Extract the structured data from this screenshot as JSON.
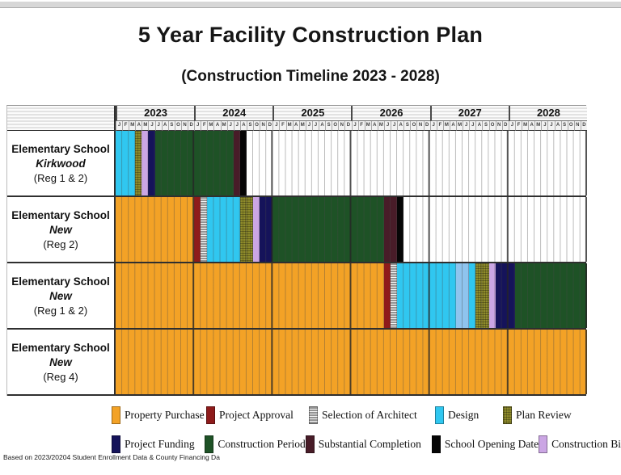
{
  "page": {
    "title": "5 Year Facility Construction Plan",
    "subtitle": "(Construction Timeline 2023 - 2028)",
    "footnote": "Based on 2023/20204 Student Enrollment Data & County Financing Da"
  },
  "chart_data": {
    "type": "bar",
    "subtype": "gantt-timeline",
    "title": "5 Year Facility Construction Plan",
    "subtitle": "(Construction Timeline 2023 - 2028)",
    "x_axis": {
      "years": [
        "2023",
        "2024",
        "2025",
        "2026",
        "2027",
        "2028"
      ],
      "month_letters": [
        "J",
        "F",
        "M",
        "A",
        "M",
        "J",
        "J",
        "A",
        "S",
        "O",
        "N",
        "D"
      ],
      "total_months": 72,
      "range": "Jan 2023 - Dec 2028",
      "grid": "monthly with heavier year dividers"
    },
    "categories": {
      "property_purchase": {
        "label": "Property Purchase",
        "color": "#F3A226",
        "pattern": "solid"
      },
      "project_approval": {
        "label": "Project Approval",
        "color": "#8E1B1B",
        "pattern": "solid"
      },
      "architect_selection": {
        "label": "Selection of Architect",
        "color": "#9A9A9A",
        "pattern": "hstripes"
      },
      "design": {
        "label": "Design",
        "color": "#30C7F0",
        "pattern": "solid"
      },
      "design_light": {
        "label": "Design",
        "color": "#8FC4EE",
        "pattern": "solid"
      },
      "plan_review": {
        "label": "Plan Review",
        "color": "#8F8C2B",
        "pattern": "crosshatch"
      },
      "project_funding": {
        "label": "Project Funding",
        "color": "#15135A",
        "pattern": "solid"
      },
      "construction_period": {
        "label": "Construction Period",
        "color": "#1E5226",
        "pattern": "solid"
      },
      "substantial_completion": {
        "label": "Substantial Completion",
        "color": "#481C28",
        "pattern": "solid"
      },
      "school_opening": {
        "label": "School Opening Date",
        "color": "#060606",
        "pattern": "solid"
      },
      "construction_bid": {
        "label": "Construction Bi",
        "color": "#CBA6E4",
        "pattern": "solid"
      }
    },
    "rows": [
      {
        "label_line1": "Elementary School",
        "label_line2": "Kirkwood",
        "label_line3": "(Reg 1 & 2)",
        "segments": [
          {
            "category": "design",
            "start": "Jan 2023",
            "months": 3
          },
          {
            "category": "plan_review",
            "start": "Apr 2023",
            "months": 1
          },
          {
            "category": "construction_bid",
            "start": "May 2023",
            "months": 1
          },
          {
            "category": "project_funding",
            "start": "Jun 2023",
            "months": 1
          },
          {
            "category": "construction_period",
            "start": "Jul 2023",
            "months": 12
          },
          {
            "category": "substantial_completion",
            "start": "Jul 2024",
            "months": 1
          },
          {
            "category": "school_opening",
            "start": "Aug 2024",
            "months": 1
          }
        ]
      },
      {
        "label_line1": "Elementary School",
        "label_line2": "New",
        "label_line3": "(Reg 2)",
        "segments": [
          {
            "category": "property_purchase",
            "start": "Jan 2023",
            "months": 12
          },
          {
            "category": "project_approval",
            "start": "Jan 2024",
            "months": 1
          },
          {
            "category": "architect_selection",
            "start": "Feb 2024",
            "months": 1
          },
          {
            "category": "design",
            "start": "Mar 2024",
            "months": 5
          },
          {
            "category": "plan_review",
            "start": "Aug 2024",
            "months": 2
          },
          {
            "category": "construction_bid",
            "start": "Oct 2024",
            "months": 1
          },
          {
            "category": "project_funding",
            "start": "Nov 2024",
            "months": 2
          },
          {
            "category": "construction_period",
            "start": "Jan 2025",
            "months": 17
          },
          {
            "category": "substantial_completion",
            "start": "Jun 2026",
            "months": 2
          },
          {
            "category": "school_opening",
            "start": "Aug 2026",
            "months": 1
          }
        ]
      },
      {
        "label_line1": "Elementary School",
        "label_line2": "New",
        "label_line3": "(Reg 1 & 2)",
        "segments": [
          {
            "category": "property_purchase",
            "start": "Jan 2023",
            "months": 41
          },
          {
            "category": "project_approval",
            "start": "Jun 2026",
            "months": 1
          },
          {
            "category": "architect_selection",
            "start": "Jul 2026",
            "months": 1
          },
          {
            "category": "design",
            "start": "Aug 2026",
            "months": 9
          },
          {
            "category": "design_light",
            "start": "May 2027",
            "months": 2
          },
          {
            "category": "design",
            "start": "Jul 2027",
            "months": 1
          },
          {
            "category": "plan_review",
            "start": "Aug 2027",
            "months": 2
          },
          {
            "category": "construction_bid",
            "start": "Oct 2027",
            "months": 1
          },
          {
            "category": "project_funding",
            "start": "Nov 2027",
            "months": 3
          },
          {
            "category": "construction_period",
            "start": "Feb 2028",
            "months": 11
          }
        ]
      },
      {
        "label_line1": "Elementary School",
        "label_line2": "New",
        "label_line3": "(Reg 4)",
        "segments": [
          {
            "category": "property_purchase",
            "start": "Jan 2023",
            "months": 72
          }
        ]
      }
    ]
  },
  "legend": {
    "rows": [
      [
        "property_purchase",
        "project_approval",
        "architect_selection",
        "design",
        "plan_review"
      ],
      [
        "project_funding",
        "construction_period",
        "substantial_completion",
        "school_opening",
        "construction_bid"
      ]
    ]
  }
}
